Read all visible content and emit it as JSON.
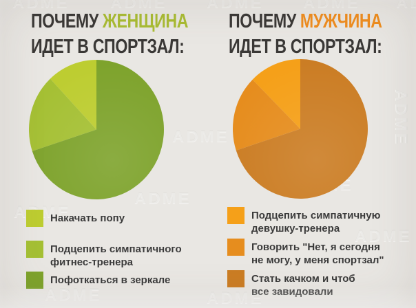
{
  "watermark": "ADME",
  "panels": [
    {
      "title_prefix": "ПОЧЕМУ",
      "title_accent": "ЖЕНЩИНА",
      "title_line2": "ИДЕТ В СПОРТЗАЛ:",
      "title_color": "#3a3836",
      "accent_color": "#a9bc33"
    },
    {
      "title_prefix": "ПОЧЕМУ",
      "title_accent": "МУЖЧИНА",
      "title_line2": "ИДЕТ В СПОРТЗАЛ:",
      "title_color": "#3a3836",
      "accent_color": "#ef8d1f"
    }
  ],
  "chart_data": [
    {
      "type": "pie",
      "title": "ПОЧЕМУ ЖЕНЩИНА ИДЕТ В СПОРТЗАЛ:",
      "start": "top",
      "direction": "counterclockwise",
      "legend_position": "bottom",
      "slices": [
        {
          "label": "Накачать попу",
          "value": 12,
          "color": "#bdcd31"
        },
        {
          "label": "Подцепить симпатичного\nфитнес-тренера",
          "value": 18,
          "color": "#a5c034"
        },
        {
          "label": "Пофоткаться в зеркале",
          "value": 70,
          "color": "#7ea32c"
        }
      ]
    },
    {
      "type": "pie",
      "title": "ПОЧЕМУ МУЖЧИНА ИДЕТ В СПОРТЗАЛ:",
      "start": "top",
      "direction": "counterclockwise",
      "legend_position": "bottom",
      "slices": [
        {
          "label": "Подцепить симпатичную\nдевушку-тренера",
          "value": 12.5,
          "color": "#f5a019"
        },
        {
          "label": "Говорить \"Нет, я сегодня\nне могу, у меня спортзал\"",
          "value": 17.5,
          "color": "#e68d1e"
        },
        {
          "label": "Стать качком и чтоб\nвсе завидовали",
          "value": 70,
          "color": "#cb7d24"
        }
      ]
    }
  ]
}
